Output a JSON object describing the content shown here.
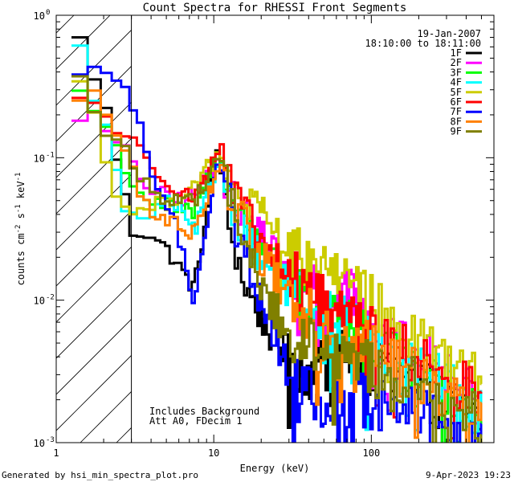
{
  "chart_data": {
    "type": "line",
    "title": "Count Spectra for RHESSI Front Segments",
    "xlabel": "Energy (keV)",
    "ylabel": "counts cm-2 s-1 keV-1",
    "xscale": "log",
    "yscale": "log",
    "xlim": [
      1,
      600
    ],
    "ylim": [
      0.001,
      1
    ],
    "x_tick_labels": [
      {
        "value": 1,
        "label": "1"
      },
      {
        "value": 10,
        "label": "10"
      },
      {
        "value": 100,
        "label": "100"
      }
    ],
    "y_tick_labels": [
      {
        "value": 1,
        "label": "10",
        "exp": "0"
      },
      {
        "value": 0.1,
        "label": "10",
        "exp": "-1"
      },
      {
        "value": 0.01,
        "label": "10",
        "exp": "-2"
      },
      {
        "value": 0.001,
        "label": "10",
        "exp": "-3"
      }
    ],
    "date": "19-Jan-2007",
    "time_range": "18:10:00 to 18:11:00",
    "annotations": [
      "Includes Background",
      "Att A0, FDecim 1"
    ],
    "shaded_region": {
      "x_max": 3,
      "style": "diagonal-hatch"
    },
    "series": [
      {
        "name": "1F",
        "color": "#000000",
        "anchors": [
          [
            1.25,
            0.85
          ],
          [
            1.6,
            0.5
          ],
          [
            2.0,
            0.25
          ],
          [
            2.6,
            0.07
          ],
          [
            3.0,
            0.03
          ],
          [
            4.0,
            0.03
          ],
          [
            5.5,
            0.02
          ],
          [
            7.5,
            0.012
          ],
          [
            9.0,
            0.04
          ],
          [
            10.5,
            0.13
          ],
          [
            12,
            0.04
          ],
          [
            16,
            0.012
          ],
          [
            25,
            0.005
          ],
          [
            40,
            0.003
          ],
          [
            70,
            0.004
          ],
          [
            120,
            0.003
          ],
          [
            200,
            0.0025
          ],
          [
            300,
            0.0018
          ],
          [
            500,
            0.0016
          ]
        ]
      },
      {
        "name": "2F",
        "color": "#ff00ff",
        "anchors": [
          [
            1.25,
            0.19
          ],
          [
            1.6,
            0.22
          ],
          [
            2.0,
            0.15
          ],
          [
            2.6,
            0.12
          ],
          [
            3.2,
            0.08
          ],
          [
            4.0,
            0.06
          ],
          [
            5.5,
            0.05
          ],
          [
            7.5,
            0.055
          ],
          [
            9.5,
            0.08
          ],
          [
            11,
            0.1
          ],
          [
            13,
            0.05
          ],
          [
            20,
            0.03
          ],
          [
            30,
            0.015
          ],
          [
            50,
            0.012
          ],
          [
            80,
            0.01
          ],
          [
            120,
            0.005
          ],
          [
            200,
            0.004
          ],
          [
            300,
            0.003
          ],
          [
            500,
            0.002
          ]
        ]
      },
      {
        "name": "3F",
        "color": "#00ff00",
        "anchors": [
          [
            1.25,
            0.35
          ],
          [
            1.6,
            0.25
          ],
          [
            2.0,
            0.17
          ],
          [
            2.6,
            0.1
          ],
          [
            3.2,
            0.06
          ],
          [
            4.0,
            0.05
          ],
          [
            5.5,
            0.045
          ],
          [
            7.5,
            0.04
          ],
          [
            9.5,
            0.08
          ],
          [
            11,
            0.11
          ],
          [
            13,
            0.05
          ],
          [
            20,
            0.025
          ],
          [
            30,
            0.015
          ],
          [
            50,
            0.008
          ],
          [
            80,
            0.006
          ],
          [
            120,
            0.005
          ],
          [
            200,
            0.003
          ],
          [
            300,
            0.002
          ],
          [
            500,
            0.0018
          ]
        ]
      },
      {
        "name": "4F",
        "color": "#00ffff",
        "anchors": [
          [
            1.25,
            0.85
          ],
          [
            1.6,
            0.35
          ],
          [
            2.0,
            0.2
          ],
          [
            2.6,
            0.05
          ],
          [
            3.2,
            0.035
          ],
          [
            4.0,
            0.04
          ],
          [
            5.5,
            0.05
          ],
          [
            7.5,
            0.03
          ],
          [
            9.5,
            0.06
          ],
          [
            11,
            0.1
          ],
          [
            13,
            0.045
          ],
          [
            20,
            0.02
          ],
          [
            30,
            0.012
          ],
          [
            50,
            0.008
          ],
          [
            80,
            0.006
          ],
          [
            120,
            0.004
          ],
          [
            200,
            0.003
          ],
          [
            300,
            0.0025
          ],
          [
            500,
            0.0016
          ]
        ]
      },
      {
        "name": "5F",
        "color": "#cccc00",
        "anchors": [
          [
            1.25,
            0.45
          ],
          [
            1.6,
            0.3
          ],
          [
            2.0,
            0.1
          ],
          [
            2.6,
            0.05
          ],
          [
            3.2,
            0.04
          ],
          [
            4.0,
            0.045
          ],
          [
            5.5,
            0.05
          ],
          [
            7.5,
            0.065
          ],
          [
            9.5,
            0.09
          ],
          [
            11,
            0.1
          ],
          [
            13,
            0.06
          ],
          [
            20,
            0.04
          ],
          [
            30,
            0.022
          ],
          [
            50,
            0.018
          ],
          [
            80,
            0.012
          ],
          [
            120,
            0.008
          ],
          [
            200,
            0.005
          ],
          [
            300,
            0.004
          ],
          [
            500,
            0.003
          ]
        ]
      },
      {
        "name": "6F",
        "color": "#ff0000",
        "anchors": [
          [
            1.25,
            0.22
          ],
          [
            1.6,
            0.3
          ],
          [
            2.0,
            0.2
          ],
          [
            2.6,
            0.15
          ],
          [
            3.2,
            0.12
          ],
          [
            4.0,
            0.09
          ],
          [
            5.5,
            0.065
          ],
          [
            7.5,
            0.05
          ],
          [
            9.5,
            0.09
          ],
          [
            11,
            0.12
          ],
          [
            13,
            0.06
          ],
          [
            20,
            0.025
          ],
          [
            30,
            0.015
          ],
          [
            50,
            0.01
          ],
          [
            80,
            0.007
          ],
          [
            120,
            0.005
          ],
          [
            200,
            0.004
          ],
          [
            300,
            0.003
          ],
          [
            500,
            0.002
          ]
        ]
      },
      {
        "name": "7F",
        "color": "#0000ff",
        "anchors": [
          [
            1.25,
            0.3
          ],
          [
            1.6,
            0.38
          ],
          [
            2.0,
            0.4
          ],
          [
            2.6,
            0.35
          ],
          [
            3.2,
            0.2
          ],
          [
            4.0,
            0.08
          ],
          [
            5.5,
            0.04
          ],
          [
            7.5,
            0.01
          ],
          [
            9.5,
            0.05
          ],
          [
            11,
            0.1
          ],
          [
            13,
            0.04
          ],
          [
            20,
            0.01
          ],
          [
            30,
            0.003
          ],
          [
            50,
            0.002
          ],
          [
            80,
            0.002
          ],
          [
            120,
            0.0018
          ],
          [
            200,
            0.0016
          ],
          [
            300,
            0.0012
          ],
          [
            500,
            0.001
          ]
        ]
      },
      {
        "name": "8F",
        "color": "#ff8000",
        "anchors": [
          [
            1.25,
            0.2
          ],
          [
            1.6,
            0.35
          ],
          [
            2.0,
            0.22
          ],
          [
            2.6,
            0.12
          ],
          [
            3.2,
            0.07
          ],
          [
            4.0,
            0.04
          ],
          [
            5.5,
            0.035
          ],
          [
            7.5,
            0.03
          ],
          [
            9.5,
            0.06
          ],
          [
            11,
            0.1
          ],
          [
            13,
            0.05
          ],
          [
            20,
            0.02
          ],
          [
            30,
            0.01
          ],
          [
            50,
            0.007
          ],
          [
            80,
            0.005
          ],
          [
            120,
            0.004
          ],
          [
            200,
            0.003
          ],
          [
            300,
            0.002
          ],
          [
            500,
            0.0018
          ]
        ]
      },
      {
        "name": "9F",
        "color": "#808000",
        "anchors": [
          [
            1.25,
            0.4
          ],
          [
            1.6,
            0.3
          ],
          [
            2.0,
            0.15
          ],
          [
            2.6,
            0.12
          ],
          [
            3.2,
            0.08
          ],
          [
            4.0,
            0.06
          ],
          [
            5.5,
            0.05
          ],
          [
            7.5,
            0.05
          ],
          [
            9.5,
            0.08
          ],
          [
            11,
            0.1
          ],
          [
            13,
            0.05
          ],
          [
            20,
            0.012
          ],
          [
            30,
            0.006
          ],
          [
            50,
            0.004
          ],
          [
            80,
            0.004
          ],
          [
            120,
            0.003
          ],
          [
            200,
            0.0025
          ],
          [
            300,
            0.002
          ],
          [
            500,
            0.0014
          ]
        ]
      }
    ]
  },
  "footer": {
    "generated_by": "Generated by hsi_min_spectra_plot.pro",
    "timestamp": "9-Apr-2023 19:23"
  }
}
